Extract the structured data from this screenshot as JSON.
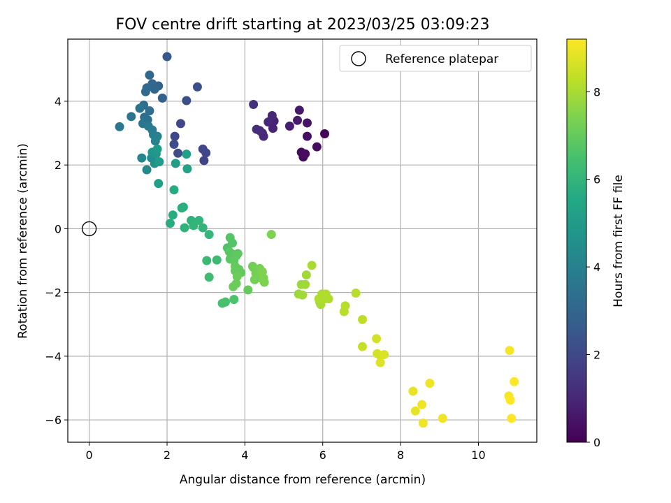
{
  "chart_data": {
    "type": "scatter",
    "title": "FOV centre drift starting at 2023/03/25 03:09:23",
    "xlabel": "Angular distance from reference (arcmin)",
    "ylabel": "Rotation from reference (arcmin)",
    "xlim": [
      -0.55,
      11.5
    ],
    "ylim": [
      -6.7,
      5.95
    ],
    "xticks": [
      0,
      2,
      4,
      6,
      8,
      10
    ],
    "yticks": [
      -6,
      -4,
      -2,
      0,
      2,
      4
    ],
    "grid": true,
    "legend": {
      "placement": "top-right",
      "entries": [
        "Reference platepar"
      ]
    },
    "reference_point": {
      "x": 0,
      "y": 0
    },
    "colorbar": {
      "label": "Hours from first FF file",
      "colormap": "viridis",
      "range": [
        0,
        9.2
      ],
      "ticks": [
        0,
        2,
        4,
        6,
        8
      ]
    },
    "points": [
      {
        "x": 6.05,
        "y": 2.98,
        "c": 0.1
      },
      {
        "x": 5.5,
        "y": 2.25,
        "c": 0.2
      },
      {
        "x": 5.45,
        "y": 2.4,
        "c": 0.25
      },
      {
        "x": 5.55,
        "y": 2.35,
        "c": 0.3
      },
      {
        "x": 5.85,
        "y": 2.57,
        "c": 0.3
      },
      {
        "x": 5.6,
        "y": 2.9,
        "c": 0.4
      },
      {
        "x": 5.6,
        "y": 3.32,
        "c": 0.5
      },
      {
        "x": 5.4,
        "y": 3.72,
        "c": 0.6
      },
      {
        "x": 5.35,
        "y": 3.4,
        "c": 0.7
      },
      {
        "x": 5.15,
        "y": 3.22,
        "c": 0.8
      },
      {
        "x": 4.75,
        "y": 3.38,
        "c": 0.9
      },
      {
        "x": 4.72,
        "y": 3.15,
        "c": 0.9
      },
      {
        "x": 4.7,
        "y": 3.55,
        "c": 1.0
      },
      {
        "x": 4.6,
        "y": 3.35,
        "c": 1.0
      },
      {
        "x": 4.48,
        "y": 2.9,
        "c": 1.1
      },
      {
        "x": 4.45,
        "y": 3.0,
        "c": 1.1
      },
      {
        "x": 4.3,
        "y": 3.12,
        "c": 1.2
      },
      {
        "x": 4.38,
        "y": 3.08,
        "c": 1.2
      },
      {
        "x": 4.22,
        "y": 3.9,
        "c": 1.3
      },
      {
        "x": 2.95,
        "y": 2.14,
        "c": 1.8
      },
      {
        "x": 3.0,
        "y": 2.38,
        "c": 1.9
      },
      {
        "x": 2.92,
        "y": 2.5,
        "c": 1.9
      },
      {
        "x": 2.35,
        "y": 3.3,
        "c": 2.0
      },
      {
        "x": 2.2,
        "y": 2.9,
        "c": 2.0
      },
      {
        "x": 2.18,
        "y": 2.65,
        "c": 2.1
      },
      {
        "x": 2.28,
        "y": 2.37,
        "c": 2.1
      },
      {
        "x": 2.5,
        "y": 4.02,
        "c": 2.2
      },
      {
        "x": 2.78,
        "y": 4.45,
        "c": 2.2
      },
      {
        "x": 2.0,
        "y": 5.4,
        "c": 2.5
      },
      {
        "x": 1.88,
        "y": 4.1,
        "c": 2.8
      },
      {
        "x": 1.78,
        "y": 4.48,
        "c": 2.9
      },
      {
        "x": 1.68,
        "y": 4.38,
        "c": 3.0
      },
      {
        "x": 1.62,
        "y": 4.55,
        "c": 3.0
      },
      {
        "x": 1.55,
        "y": 4.82,
        "c": 3.1
      },
      {
        "x": 1.48,
        "y": 4.42,
        "c": 3.1
      },
      {
        "x": 1.45,
        "y": 4.3,
        "c": 3.2
      },
      {
        "x": 1.4,
        "y": 3.88,
        "c": 3.3
      },
      {
        "x": 1.55,
        "y": 3.7,
        "c": 3.3
      },
      {
        "x": 1.42,
        "y": 3.5,
        "c": 3.4
      },
      {
        "x": 1.5,
        "y": 3.42,
        "c": 3.4
      },
      {
        "x": 1.3,
        "y": 3.78,
        "c": 3.5
      },
      {
        "x": 1.08,
        "y": 3.52,
        "c": 3.6
      },
      {
        "x": 1.38,
        "y": 3.3,
        "c": 3.6
      },
      {
        "x": 1.52,
        "y": 3.22,
        "c": 3.7
      },
      {
        "x": 1.62,
        "y": 3.1,
        "c": 3.8
      },
      {
        "x": 1.65,
        "y": 2.95,
        "c": 3.9
      },
      {
        "x": 0.78,
        "y": 3.2,
        "c": 3.7
      },
      {
        "x": 1.75,
        "y": 2.9,
        "c": 4.0
      },
      {
        "x": 1.7,
        "y": 2.75,
        "c": 4.1
      },
      {
        "x": 1.35,
        "y": 2.22,
        "c": 4.2
      },
      {
        "x": 1.48,
        "y": 1.85,
        "c": 4.3
      },
      {
        "x": 1.6,
        "y": 2.22,
        "c": 4.4
      },
      {
        "x": 1.68,
        "y": 2.05,
        "c": 4.6
      },
      {
        "x": 1.62,
        "y": 2.4,
        "c": 4.8
      },
      {
        "x": 1.72,
        "y": 2.35,
        "c": 4.8
      },
      {
        "x": 1.75,
        "y": 2.5,
        "c": 5.0
      },
      {
        "x": 1.8,
        "y": 2.1,
        "c": 5.0
      },
      {
        "x": 1.78,
        "y": 1.42,
        "c": 5.2
      },
      {
        "x": 2.22,
        "y": 2.05,
        "c": 5.1
      },
      {
        "x": 2.5,
        "y": 2.34,
        "c": 5.2
      },
      {
        "x": 2.52,
        "y": 1.88,
        "c": 5.3
      },
      {
        "x": 2.18,
        "y": 1.22,
        "c": 5.6
      },
      {
        "x": 2.15,
        "y": 0.43,
        "c": 5.7
      },
      {
        "x": 2.08,
        "y": 0.17,
        "c": 5.7
      },
      {
        "x": 2.42,
        "y": 0.68,
        "c": 5.8
      },
      {
        "x": 2.38,
        "y": 0.65,
        "c": 5.8
      },
      {
        "x": 2.45,
        "y": 0.03,
        "c": 5.9
      },
      {
        "x": 2.62,
        "y": 0.26,
        "c": 5.9
      },
      {
        "x": 2.68,
        "y": 0.1,
        "c": 6.0
      },
      {
        "x": 2.82,
        "y": 0.26,
        "c": 6.0
      },
      {
        "x": 2.92,
        "y": 0.03,
        "c": 6.0
      },
      {
        "x": 3.08,
        "y": -0.18,
        "c": 6.1
      },
      {
        "x": 3.02,
        "y": -1.0,
        "c": 6.2
      },
      {
        "x": 3.28,
        "y": -0.98,
        "c": 6.2
      },
      {
        "x": 3.08,
        "y": -1.52,
        "c": 6.3
      },
      {
        "x": 3.42,
        "y": -2.34,
        "c": 6.5
      },
      {
        "x": 3.5,
        "y": -2.3,
        "c": 6.5
      },
      {
        "x": 3.72,
        "y": -2.22,
        "c": 6.6
      },
      {
        "x": 3.55,
        "y": -0.6,
        "c": 6.6
      },
      {
        "x": 3.62,
        "y": -0.28,
        "c": 6.7
      },
      {
        "x": 3.68,
        "y": -0.45,
        "c": 6.7
      },
      {
        "x": 3.6,
        "y": -0.72,
        "c": 6.8
      },
      {
        "x": 3.62,
        "y": -0.95,
        "c": 6.8
      },
      {
        "x": 3.7,
        "y": -0.8,
        "c": 6.8
      },
      {
        "x": 3.78,
        "y": -0.85,
        "c": 6.9
      },
      {
        "x": 3.82,
        "y": -0.78,
        "c": 6.9
      },
      {
        "x": 3.72,
        "y": -1.0,
        "c": 6.9
      },
      {
        "x": 3.75,
        "y": -1.18,
        "c": 7.0
      },
      {
        "x": 3.85,
        "y": -1.28,
        "c": 7.0
      },
      {
        "x": 3.75,
        "y": -1.32,
        "c": 7.0
      },
      {
        "x": 3.9,
        "y": -1.38,
        "c": 7.0
      },
      {
        "x": 3.8,
        "y": -1.5,
        "c": 7.1
      },
      {
        "x": 3.78,
        "y": -1.72,
        "c": 7.1
      },
      {
        "x": 3.7,
        "y": -1.82,
        "c": 7.1
      },
      {
        "x": 4.08,
        "y": -1.92,
        "c": 7.0
      },
      {
        "x": 4.2,
        "y": -1.18,
        "c": 7.2
      },
      {
        "x": 4.22,
        "y": -1.22,
        "c": 7.2
      },
      {
        "x": 4.28,
        "y": -1.4,
        "c": 7.2
      },
      {
        "x": 4.25,
        "y": -1.6,
        "c": 7.3
      },
      {
        "x": 4.35,
        "y": -1.3,
        "c": 7.3
      },
      {
        "x": 4.38,
        "y": -1.25,
        "c": 7.3
      },
      {
        "x": 4.42,
        "y": -1.55,
        "c": 7.3
      },
      {
        "x": 4.45,
        "y": -1.35,
        "c": 7.4
      },
      {
        "x": 4.5,
        "y": -1.68,
        "c": 7.4
      },
      {
        "x": 4.48,
        "y": -1.55,
        "c": 7.4
      },
      {
        "x": 4.68,
        "y": -0.18,
        "c": 7.4
      },
      {
        "x": 5.38,
        "y": -2.05,
        "c": 7.8
      },
      {
        "x": 5.45,
        "y": -1.75,
        "c": 7.8
      },
      {
        "x": 5.48,
        "y": -2.08,
        "c": 7.9
      },
      {
        "x": 5.55,
        "y": -1.75,
        "c": 7.9
      },
      {
        "x": 5.58,
        "y": -1.45,
        "c": 7.9
      },
      {
        "x": 5.72,
        "y": -1.15,
        "c": 8.0
      },
      {
        "x": 5.92,
        "y": -2.3,
        "c": 8.0
      },
      {
        "x": 5.95,
        "y": -2.38,
        "c": 8.0
      },
      {
        "x": 5.98,
        "y": -2.05,
        "c": 8.1
      },
      {
        "x": 6.0,
        "y": -2.2,
        "c": 8.1
      },
      {
        "x": 6.08,
        "y": -2.05,
        "c": 8.1
      },
      {
        "x": 6.05,
        "y": -2.2,
        "c": 8.1
      },
      {
        "x": 6.15,
        "y": -2.2,
        "c": 8.1
      },
      {
        "x": 5.9,
        "y": -2.2,
        "c": 8.1
      },
      {
        "x": 6.55,
        "y": -2.6,
        "c": 8.2
      },
      {
        "x": 6.58,
        "y": -2.42,
        "c": 8.2
      },
      {
        "x": 6.85,
        "y": -2.02,
        "c": 8.2
      },
      {
        "x": 7.02,
        "y": -2.85,
        "c": 8.3
      },
      {
        "x": 7.02,
        "y": -3.7,
        "c": 8.4
      },
      {
        "x": 7.38,
        "y": -3.45,
        "c": 8.6
      },
      {
        "x": 7.4,
        "y": -3.92,
        "c": 8.6
      },
      {
        "x": 7.48,
        "y": -3.98,
        "c": 8.6
      },
      {
        "x": 7.48,
        "y": -4.2,
        "c": 8.7
      },
      {
        "x": 7.58,
        "y": -3.95,
        "c": 8.7
      },
      {
        "x": 8.32,
        "y": -5.1,
        "c": 8.9
      },
      {
        "x": 8.38,
        "y": -5.72,
        "c": 8.9
      },
      {
        "x": 8.55,
        "y": -5.52,
        "c": 9.0
      },
      {
        "x": 8.58,
        "y": -6.1,
        "c": 9.0
      },
      {
        "x": 8.75,
        "y": -4.85,
        "c": 9.0
      },
      {
        "x": 9.08,
        "y": -5.95,
        "c": 9.0
      },
      {
        "x": 10.8,
        "y": -3.82,
        "c": 9.1
      },
      {
        "x": 10.78,
        "y": -5.25,
        "c": 9.1
      },
      {
        "x": 10.82,
        "y": -5.38,
        "c": 9.2
      },
      {
        "x": 10.85,
        "y": -5.95,
        "c": 9.2
      },
      {
        "x": 10.92,
        "y": -4.8,
        "c": 9.2
      }
    ]
  }
}
